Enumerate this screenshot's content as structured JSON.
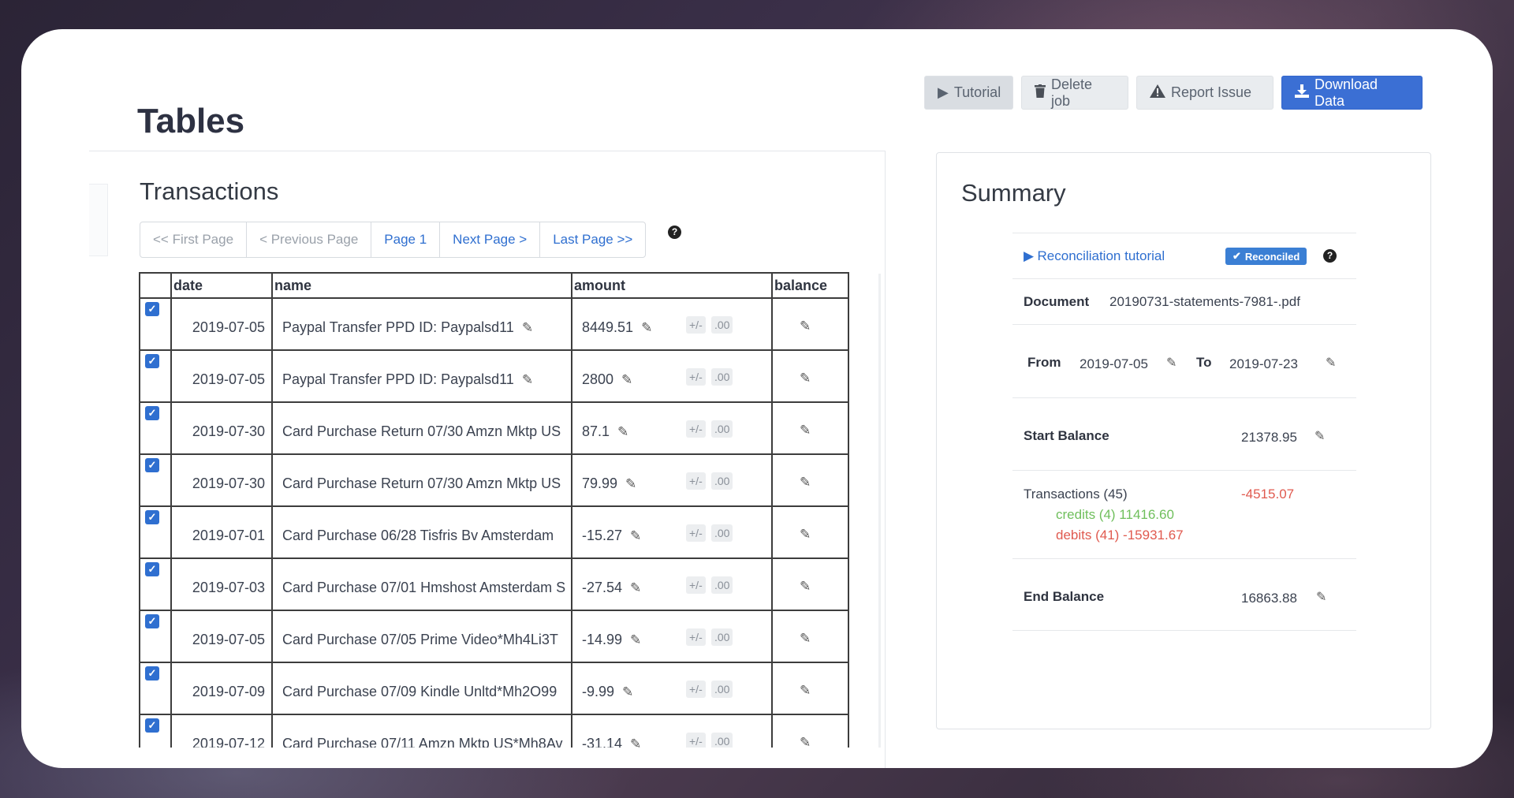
{
  "header": {
    "title": "Tables",
    "buttons": {
      "tutorial": "Tutorial",
      "delete": "Delete job",
      "report": "Report Issue",
      "download": "Download Data"
    }
  },
  "transactions": {
    "title": "Transactions",
    "pager": {
      "first": "<< First Page",
      "previous": "< Previous Page",
      "current": "Page 1",
      "next": "Next Page >",
      "last": "Last Page >>"
    },
    "columns": [
      "date",
      "name",
      "amount",
      "balance"
    ],
    "rows": [
      {
        "checked": true,
        "date": "2019-07-05",
        "name": "Paypal Transfer PPD ID: Paypalsd11",
        "amount": "8449.51"
      },
      {
        "checked": true,
        "date": "2019-07-05",
        "name": "Paypal Transfer PPD ID: Paypalsd11",
        "amount": "2800"
      },
      {
        "checked": true,
        "date": "2019-07-30",
        "name": "Card Purchase Return 07/30 Amzn Mktp US",
        "amount": "87.1"
      },
      {
        "checked": true,
        "date": "2019-07-30",
        "name": "Card Purchase Return 07/30 Amzn Mktp US",
        "amount": "79.99"
      },
      {
        "checked": true,
        "date": "2019-07-01",
        "name": "Card Purchase 06/28 Tisfris Bv Amsterdam",
        "amount": "-15.27"
      },
      {
        "checked": true,
        "date": "2019-07-03",
        "name": "Card Purchase 07/01 Hmshost Amsterdam S",
        "amount": "-27.54"
      },
      {
        "checked": true,
        "date": "2019-07-05",
        "name": "Card Purchase 07/05 Prime Video*Mh4Li3T",
        "amount": "-14.99"
      },
      {
        "checked": true,
        "date": "2019-07-09",
        "name": "Card Purchase 07/09 Kindle Unltd*Mh2O99",
        "amount": "-9.99"
      },
      {
        "checked": true,
        "date": "2019-07-12",
        "name": "Card Purchase 07/11 Amzn Mktp US*Mh8Av",
        "amount": "-31.14"
      }
    ],
    "mini_buttons": {
      "sign": "+/-",
      "decimals": ".00"
    }
  },
  "summary": {
    "title": "Summary",
    "tutorial_link": "Reconciliation tutorial",
    "badge": "Reconciled",
    "document_label": "Document",
    "document_value": "20190731-statements-7981-.pdf",
    "from_label": "From",
    "from_value": "2019-07-05",
    "to_label": "To",
    "to_value": "2019-07-23",
    "start_balance_label": "Start Balance",
    "start_balance_value": "21378.95",
    "transactions_label": "Transactions (45)",
    "transactions_total": "-4515.07",
    "credits": "credits (4) 11416.60",
    "debits": "debits (41) -15931.67",
    "end_balance_label": "End Balance",
    "end_balance_value": "16863.88"
  },
  "icons": {
    "play": "play-icon",
    "trash": "trash-icon",
    "warning": "warning-icon",
    "download": "download-icon",
    "edit": "edit-icon",
    "help": "help-icon",
    "check": "check-icon"
  },
  "colors": {
    "accent": "#3b6fd4",
    "link": "#2f6fd0",
    "credits": "#6fbf5c",
    "debits": "#e05a4f"
  }
}
